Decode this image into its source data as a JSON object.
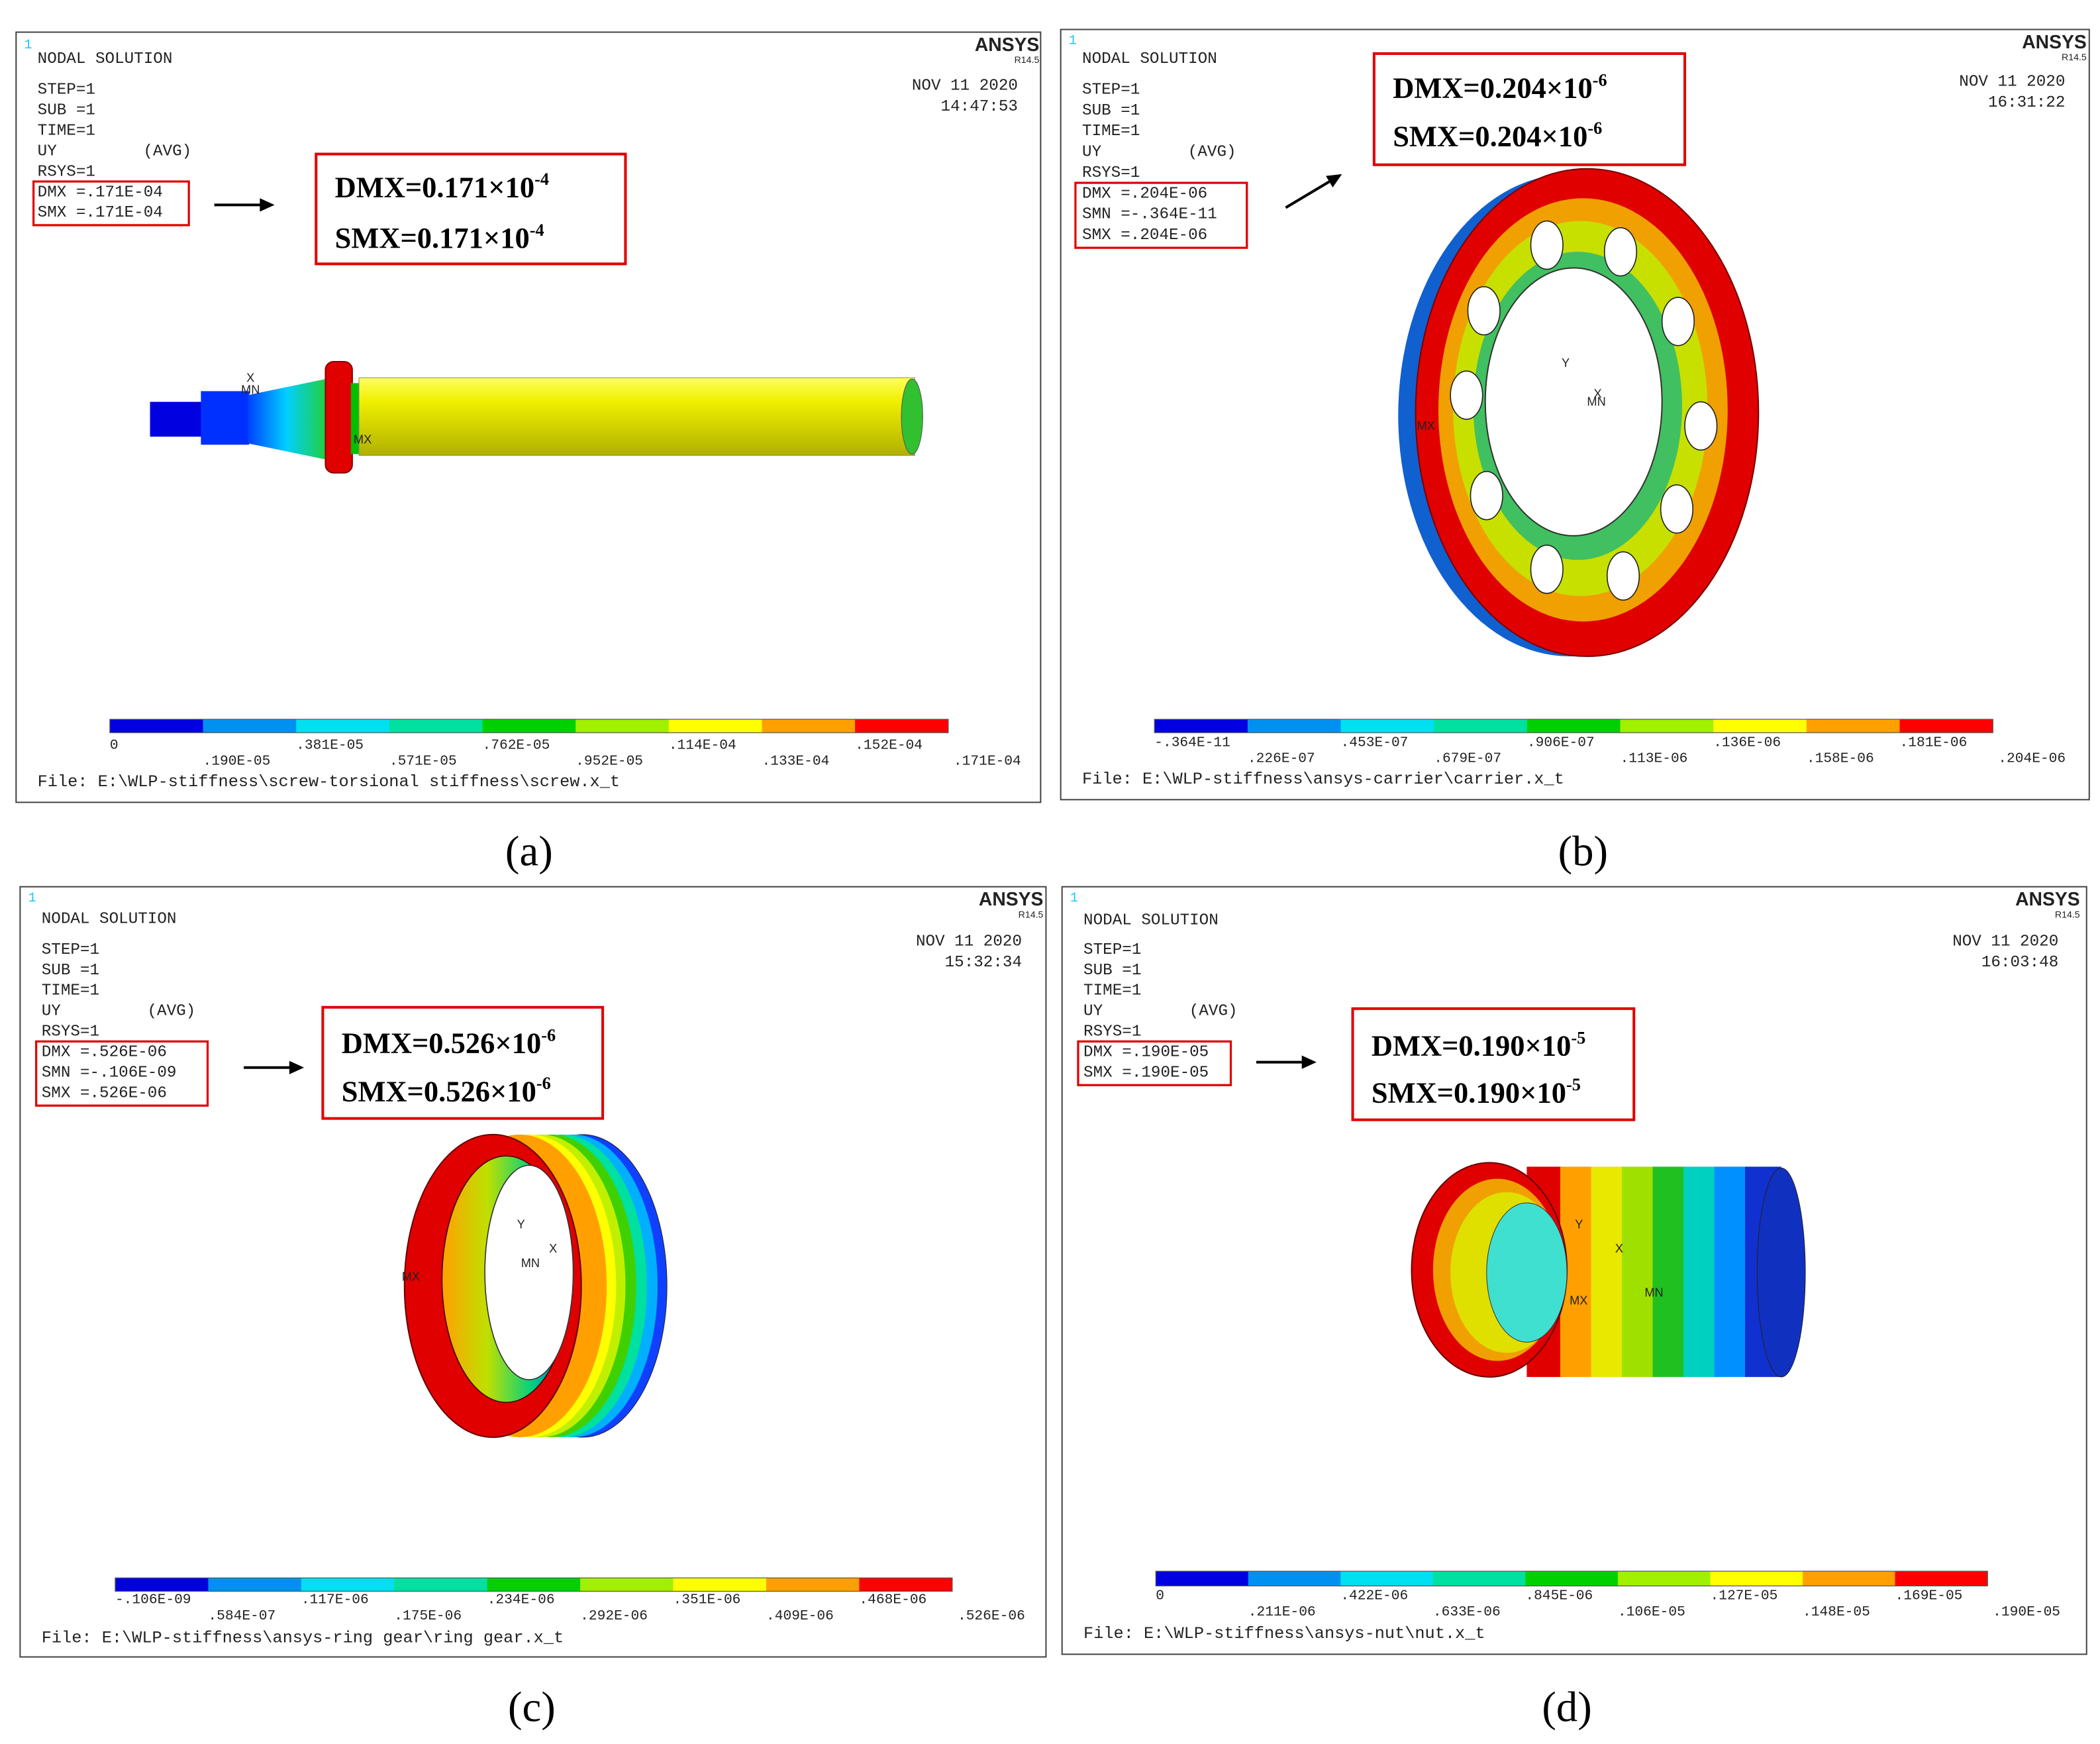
{
  "panels": [
    {
      "label": "(a)",
      "window_number": "1",
      "title": "NODAL SOLUTION",
      "info": [
        "STEP=1",
        "SUB =1",
        "TIME=1",
        "UY",
        "RSYS=1"
      ],
      "avg": "(AVG)",
      "extremes": [
        "DMX =.171E-04",
        "SMX =.171E-04"
      ],
      "brand": "ANSYS",
      "version": "R14.5",
      "date": "NOV 11 2020",
      "time": "14:47:53",
      "callout": [
        {
          "text": "DMX=0.171×10",
          "exp": "-4"
        },
        {
          "text": "SMX=0.171×10",
          "exp": "-4"
        }
      ],
      "legend": [
        "0",
        ".190E-05",
        ".381E-05",
        ".571E-05",
        ".762E-05",
        ".952E-05",
        ".114E-04",
        ".133E-04",
        ".152E-04",
        ".171E-04"
      ],
      "file": "File: E:\\WLP-stiffness\\screw-torsional stiffness\\screw.x_t",
      "model_labels": [
        "X",
        "MN",
        "MX"
      ]
    },
    {
      "label": "(b)",
      "window_number": "1",
      "title": "NODAL SOLUTION",
      "info": [
        "STEP=1",
        "SUB =1",
        "TIME=1",
        "UY",
        "RSYS=1"
      ],
      "avg": "(AVG)",
      "extremes": [
        "DMX =.204E-06",
        "SMN =-.364E-11",
        "SMX =.204E-06"
      ],
      "brand": "ANSYS",
      "version": "R14.5",
      "date": "NOV 11 2020",
      "time": "16:31:22",
      "callout": [
        {
          "text": "DMX=0.204×10",
          "exp": "-6"
        },
        {
          "text": "SMX=0.204×10",
          "exp": "-6"
        }
      ],
      "legend": [
        "-.364E-11",
        ".226E-07",
        ".453E-07",
        ".679E-07",
        ".906E-07",
        ".113E-06",
        ".136E-06",
        ".158E-06",
        ".181E-06",
        ".204E-06"
      ],
      "file": "File: E:\\WLP-stiffness\\ansys-carrier\\carrier.x_t",
      "model_labels": [
        "Y",
        "X",
        "MN",
        "MX"
      ]
    },
    {
      "label": "(c)",
      "window_number": "1",
      "title": "NODAL SOLUTION",
      "info": [
        "STEP=1",
        "SUB =1",
        "TIME=1",
        "UY",
        "RSYS=1"
      ],
      "avg": "(AVG)",
      "extremes": [
        "DMX =.526E-06",
        "SMN =-.106E-09",
        "SMX =.526E-06"
      ],
      "brand": "ANSYS",
      "version": "R14.5",
      "date": "NOV 11 2020",
      "time": "15:32:34",
      "callout": [
        {
          "text": "DMX=0.526×10",
          "exp": "-6"
        },
        {
          "text": "SMX=0.526×10",
          "exp": "-6"
        }
      ],
      "legend": [
        "-.106E-09",
        ".584E-07",
        ".117E-06",
        ".175E-06",
        ".234E-06",
        ".292E-06",
        ".351E-06",
        ".409E-06",
        ".468E-06",
        ".526E-06"
      ],
      "file": "File: E:\\WLP-stiffness\\ansys-ring gear\\ring gear.x_t",
      "model_labels": [
        "Y",
        "X",
        "MN",
        "MX"
      ]
    },
    {
      "label": "(d)",
      "window_number": "1",
      "title": "NODAL SOLUTION",
      "info": [
        "STEP=1",
        "SUB =1",
        "TIME=1",
        "UY",
        "RSYS=1"
      ],
      "avg": "(AVG)",
      "extremes": [
        "DMX =.190E-05",
        "SMX =.190E-05"
      ],
      "brand": "ANSYS",
      "version": "R14.5",
      "date": "NOV 11 2020",
      "time": "16:03:48",
      "callout": [
        {
          "text": "DMX=0.190×10",
          "exp": "-5"
        },
        {
          "text": "SMX=0.190×10",
          "exp": "-5"
        }
      ],
      "legend": [
        "0",
        ".211E-06",
        ".422E-06",
        ".633E-06",
        ".845E-06",
        ".106E-05",
        ".127E-05",
        ".148E-05",
        ".169E-05",
        ".190E-05"
      ],
      "file": "File: E:\\WLP-stiffness\\ansys-nut\\nut.x_t",
      "model_labels": [
        "Y",
        "X",
        "MN",
        "MX"
      ]
    }
  ]
}
